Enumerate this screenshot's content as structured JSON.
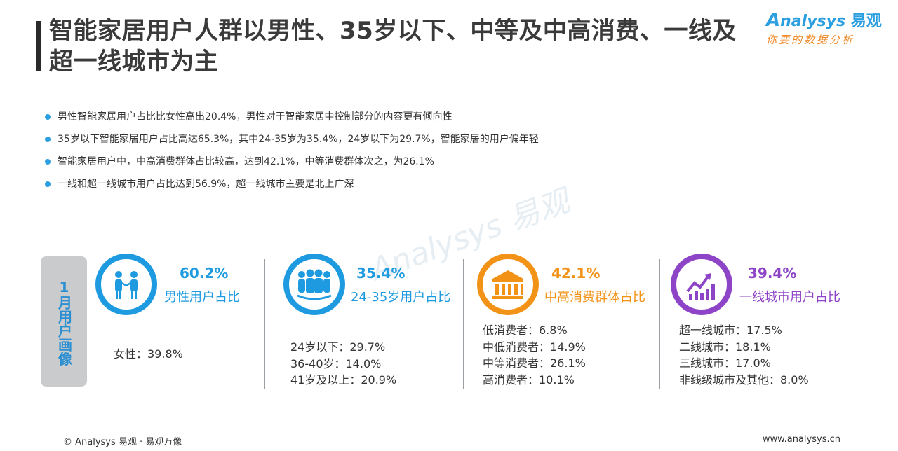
{
  "title": "智能家居用户人群以男性、35岁以下、中等及中高消费、一线及超一线城市为主",
  "brand": {
    "name": "nalysys",
    "name_cn": "易观",
    "slogan": "你要的数据分析"
  },
  "bullets": [
    "男性智能家居用户占比比女性高出20.4%，男性对于智能家居中控制部分的内容更有倾向性",
    "35岁以下智能家居用户占比高达65.3%，其中24-35岁为35.4%，24岁以下为29.7%，智能家居的用户偏年轻",
    "智能家居用户中，中高消费群体占比较高，达到42.1%，中等消费群体次之，为26.1%",
    "一线和超一线城市用户占比达到56.9%，超一线城市主要是北上广深"
  ],
  "watermark": "Analysys 易观",
  "side_tab": "1月用户画像",
  "blocks": [
    {
      "icon": "people-talking-icon",
      "color": "#1e9be0",
      "percent": "60.2%",
      "label": "男性用户占比",
      "stats": [
        "女性：39.8%"
      ]
    },
    {
      "icon": "group-people-icon",
      "color": "#1e9be0",
      "percent": "35.4%",
      "label": "24-35岁用户占比",
      "stats": [
        "24岁以下：29.7%",
        "36-40岁：14.0%",
        "41岁及以上：20.9%"
      ]
    },
    {
      "icon": "bank-building-icon",
      "color": "#f29318",
      "percent": "42.1%",
      "label": "中高消费群体占比",
      "stats": [
        "低消费者：6.8%",
        "中低消费者：14.9%",
        "中等消费者：26.1%",
        "高消费者：10.1%"
      ]
    },
    {
      "icon": "growth-chart-icon",
      "color": "#8e44c7",
      "percent": "39.4%",
      "label": "一线城市用户占比",
      "stats": [
        "超一线城市：17.5%",
        "二线城市：18.1%",
        "三线城市：17.0%",
        "非线级城市及其他：8.0%"
      ]
    }
  ],
  "footer": {
    "left": "© Analysys 易观 · 易观万像",
    "right": "www.analysys.cn"
  }
}
